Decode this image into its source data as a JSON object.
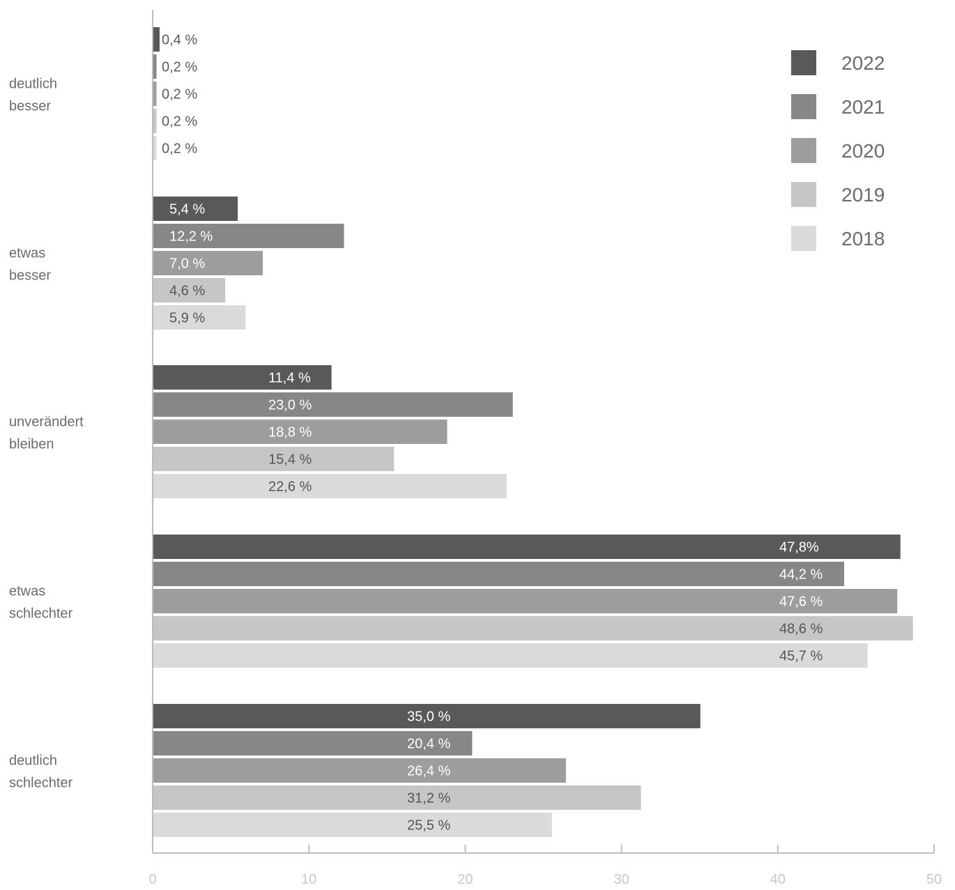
{
  "chart_data": {
    "type": "bar",
    "orientation": "horizontal",
    "categories": [
      [
        "deutlich",
        "besser"
      ],
      [
        "etwas",
        "besser"
      ],
      [
        "unverändert",
        "bleiben"
      ],
      [
        "etwas",
        "schlechter"
      ],
      [
        "deutlich",
        "schlechter"
      ]
    ],
    "series": [
      {
        "name": "2022",
        "color": "#595959",
        "values": [
          0.4,
          5.4,
          11.4,
          47.8,
          35.0
        ],
        "labels": [
          "0,4 %",
          "5,4 %",
          "11,4 %",
          "47,8%",
          "35,0 %"
        ]
      },
      {
        "name": "2021",
        "color": "#878787",
        "values": [
          0.2,
          12.2,
          23.0,
          44.2,
          20.4
        ],
        "labels": [
          "0,2 %",
          "12,2 %",
          "23,0 %",
          "44,2 %",
          "20,4 %"
        ]
      },
      {
        "name": "2020",
        "color": "#9d9d9d",
        "values": [
          0.2,
          7.0,
          18.8,
          47.6,
          26.4
        ],
        "labels": [
          "0,2 %",
          "7,0 %",
          "18,8 %",
          "47,6 %",
          "26,4 %"
        ]
      },
      {
        "name": "2019",
        "color": "#c6c6c6",
        "values": [
          0.2,
          4.6,
          15.4,
          48.6,
          31.2
        ],
        "labels": [
          "0,2 %",
          "4,6 %",
          "15,4 %",
          "48,6 %",
          "31,2 %"
        ]
      },
      {
        "name": "2018",
        "color": "#dadada",
        "values": [
          0.2,
          5.9,
          22.6,
          45.7,
          25.5
        ],
        "labels": [
          "0,2 %",
          "5,9 %",
          "22,6 %",
          "45,7 %",
          "25,5 %"
        ]
      }
    ],
    "xlim": [
      0,
      50
    ],
    "xticks": [
      0,
      10,
      20,
      30,
      40,
      50
    ],
    "title": "",
    "xlabel": "",
    "ylabel": "",
    "grid": false,
    "legend_position": "top-right"
  }
}
